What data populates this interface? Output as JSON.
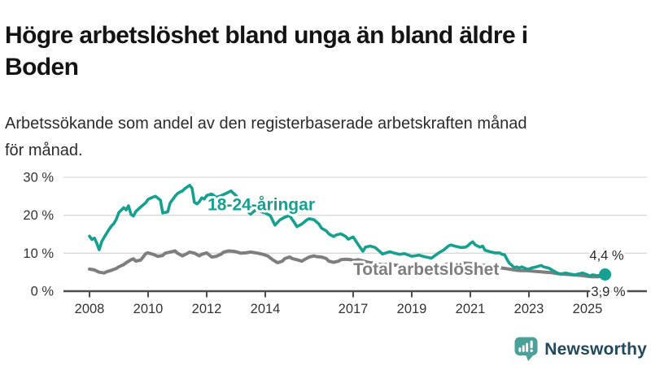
{
  "title": {
    "line1": "Högre arbetslöshet bland unga än bland äldre i",
    "line2": "Boden"
  },
  "subtitle": {
    "line1": "Arbetssökande som andel av den registerbaserade arbetskraften månad",
    "line2": "för månad."
  },
  "logo": {
    "text": "Newsworthy",
    "icon": "bar-chart-speech-bubble",
    "icon_color": "#4aa19a",
    "text_color": "#214a5e"
  },
  "chart_data": {
    "type": "line",
    "title": "Högre arbetslöshet bland unga än bland äldre i Boden",
    "xlabel": "",
    "ylabel": "",
    "unit": "%",
    "grid": "horizontal",
    "legend_position": "inline-labels",
    "x_axis": {
      "ticks": [
        2008,
        2010,
        2012,
        2014,
        2017,
        2019,
        2021,
        2023,
        2025
      ],
      "labels": [
        "2008",
        "2010",
        "2012",
        "2014",
        "2017",
        "2019",
        "2021",
        "2023",
        "2025"
      ],
      "range": [
        2008,
        2025.6
      ]
    },
    "y_axis": {
      "ticks": [
        0,
        10,
        20,
        30
      ],
      "labels": [
        "0 %",
        "10 %",
        "20 %",
        "30 %"
      ],
      "range": [
        0,
        30
      ]
    },
    "style": {
      "grid_color": "#d9d9d9",
      "axis_color": "#4d4d4d",
      "tick_text_color": "#333333",
      "value_text_color": "#2b2b2b",
      "label_halo_color": "#ffffff"
    },
    "series": [
      {
        "name": "18-24-åringar",
        "color": "#16a08f",
        "end_label": "4,4 %",
        "end_value": 4.4,
        "label_anchor": {
          "year": 2012.03,
          "value": 21.3
        },
        "points": [
          [
            2008.0,
            14.5
          ],
          [
            2008.08,
            13.6
          ],
          [
            2008.17,
            14.0
          ],
          [
            2008.25,
            12.6
          ],
          [
            2008.33,
            10.9
          ],
          [
            2008.42,
            13.1
          ],
          [
            2008.5,
            14.2
          ],
          [
            2008.58,
            15.2
          ],
          [
            2008.67,
            16.3
          ],
          [
            2008.75,
            17.2
          ],
          [
            2008.83,
            17.8
          ],
          [
            2008.92,
            19.0
          ],
          [
            2009.0,
            20.7
          ],
          [
            2009.17,
            22.0
          ],
          [
            2009.25,
            21.4
          ],
          [
            2009.33,
            22.5
          ],
          [
            2009.42,
            20.2
          ],
          [
            2009.5,
            19.8
          ],
          [
            2009.58,
            21.0
          ],
          [
            2009.75,
            22.2
          ],
          [
            2009.92,
            23.3
          ],
          [
            2010.0,
            24.2
          ],
          [
            2010.17,
            24.8
          ],
          [
            2010.25,
            25.0
          ],
          [
            2010.42,
            24.0
          ],
          [
            2010.5,
            20.6
          ],
          [
            2010.67,
            20.9
          ],
          [
            2010.75,
            23.2
          ],
          [
            2010.92,
            25.0
          ],
          [
            2011.0,
            25.7
          ],
          [
            2011.08,
            26.1
          ],
          [
            2011.17,
            26.4
          ],
          [
            2011.25,
            27.0
          ],
          [
            2011.42,
            27.9
          ],
          [
            2011.5,
            27.1
          ],
          [
            2011.58,
            23.4
          ],
          [
            2011.67,
            23.0
          ],
          [
            2011.75,
            23.6
          ],
          [
            2011.83,
            24.6
          ],
          [
            2011.92,
            24.3
          ],
          [
            2012.0,
            25.2
          ],
          [
            2012.17,
            25.6
          ],
          [
            2012.33,
            24.7
          ],
          [
            2012.5,
            25.2
          ],
          [
            2012.67,
            25.8
          ],
          [
            2012.83,
            26.4
          ],
          [
            2013.0,
            25.2
          ],
          [
            2013.17,
            23.6
          ],
          [
            2013.33,
            21.6
          ],
          [
            2013.5,
            20.3
          ],
          [
            2013.67,
            21.4
          ],
          [
            2013.83,
            21.0
          ],
          [
            2014.0,
            20.6
          ],
          [
            2014.17,
            19.9
          ],
          [
            2014.33,
            17.4
          ],
          [
            2014.5,
            18.8
          ],
          [
            2014.67,
            19.5
          ],
          [
            2014.83,
            19.9
          ],
          [
            2015.0,
            18.0
          ],
          [
            2015.08,
            17.0
          ],
          [
            2015.25,
            17.7
          ],
          [
            2015.42,
            18.8
          ],
          [
            2015.5,
            19.1
          ],
          [
            2015.67,
            18.8
          ],
          [
            2015.83,
            17.7
          ],
          [
            2015.92,
            16.6
          ],
          [
            2016.08,
            15.9
          ],
          [
            2016.17,
            15.1
          ],
          [
            2016.33,
            14.4
          ],
          [
            2016.42,
            14.8
          ],
          [
            2016.58,
            15.1
          ],
          [
            2016.75,
            14.4
          ],
          [
            2016.83,
            13.7
          ],
          [
            2017.0,
            14.3
          ],
          [
            2017.17,
            12.3
          ],
          [
            2017.33,
            10.5
          ],
          [
            2017.42,
            11.6
          ],
          [
            2017.58,
            11.9
          ],
          [
            2017.75,
            11.5
          ],
          [
            2017.92,
            10.4
          ],
          [
            2018.0,
            9.8
          ],
          [
            2018.25,
            10.4
          ],
          [
            2018.42,
            10.0
          ],
          [
            2018.58,
            9.7
          ],
          [
            2018.75,
            9.9
          ],
          [
            2019.0,
            9.2
          ],
          [
            2019.25,
            9.5
          ],
          [
            2019.42,
            9.1
          ],
          [
            2019.67,
            8.7
          ],
          [
            2019.92,
            10.1
          ],
          [
            2020.08,
            10.8
          ],
          [
            2020.25,
            11.9
          ],
          [
            2020.33,
            12.2
          ],
          [
            2020.5,
            11.8
          ],
          [
            2020.67,
            11.5
          ],
          [
            2020.83,
            11.6
          ],
          [
            2020.92,
            12.0
          ],
          [
            2021.0,
            12.6
          ],
          [
            2021.08,
            13.0
          ],
          [
            2021.17,
            12.2
          ],
          [
            2021.33,
            11.6
          ],
          [
            2021.42,
            11.9
          ],
          [
            2021.5,
            10.8
          ],
          [
            2021.67,
            10.4
          ],
          [
            2021.83,
            10.1
          ],
          [
            2022.0,
            10.1
          ],
          [
            2022.08,
            9.7
          ],
          [
            2022.17,
            9.6
          ],
          [
            2022.25,
            8.4
          ],
          [
            2022.33,
            7.4
          ],
          [
            2022.42,
            6.8
          ],
          [
            2022.5,
            6.2
          ],
          [
            2022.58,
            6.4
          ],
          [
            2022.67,
            6.1
          ],
          [
            2022.75,
            6.4
          ],
          [
            2022.92,
            5.9
          ],
          [
            2023.0,
            5.8
          ],
          [
            2023.08,
            6.1
          ],
          [
            2023.25,
            6.4
          ],
          [
            2023.42,
            6.8
          ],
          [
            2023.5,
            6.4
          ],
          [
            2023.67,
            6.1
          ],
          [
            2023.83,
            5.4
          ],
          [
            2023.92,
            5.0
          ],
          [
            2024.0,
            4.7
          ],
          [
            2024.08,
            4.5
          ],
          [
            2024.25,
            4.8
          ],
          [
            2024.42,
            4.5
          ],
          [
            2024.58,
            4.3
          ],
          [
            2024.67,
            4.5
          ],
          [
            2024.83,
            4.8
          ],
          [
            2025.0,
            4.3
          ],
          [
            2025.08,
            4.0
          ],
          [
            2025.17,
            4.3
          ],
          [
            2025.33,
            4.1
          ],
          [
            2025.6,
            4.4
          ]
        ]
      },
      {
        "name": "Total arbetslöshet",
        "color": "#7e7e7e",
        "end_label": "3,9 %",
        "end_value": 3.9,
        "label_anchor": {
          "year": 2017.0,
          "value": 4.3
        },
        "points": [
          [
            2008.0,
            5.8
          ],
          [
            2008.17,
            5.6
          ],
          [
            2008.33,
            5.0
          ],
          [
            2008.5,
            4.8
          ],
          [
            2008.58,
            5.1
          ],
          [
            2008.75,
            5.5
          ],
          [
            2008.92,
            6.0
          ],
          [
            2009.0,
            6.4
          ],
          [
            2009.17,
            7.0
          ],
          [
            2009.25,
            7.5
          ],
          [
            2009.42,
            8.3
          ],
          [
            2009.5,
            8.5
          ],
          [
            2009.58,
            7.9
          ],
          [
            2009.75,
            8.2
          ],
          [
            2009.92,
            9.9
          ],
          [
            2010.0,
            10.1
          ],
          [
            2010.17,
            9.7
          ],
          [
            2010.33,
            9.2
          ],
          [
            2010.5,
            9.4
          ],
          [
            2010.58,
            10.0
          ],
          [
            2010.75,
            10.3
          ],
          [
            2010.92,
            10.6
          ],
          [
            2011.0,
            10.0
          ],
          [
            2011.17,
            9.3
          ],
          [
            2011.33,
            9.9
          ],
          [
            2011.42,
            10.3
          ],
          [
            2011.58,
            10.0
          ],
          [
            2011.75,
            9.3
          ],
          [
            2011.83,
            9.7
          ],
          [
            2012.0,
            10.1
          ],
          [
            2012.17,
            9.0
          ],
          [
            2012.33,
            9.2
          ],
          [
            2012.5,
            9.8
          ],
          [
            2012.58,
            10.3
          ],
          [
            2012.75,
            10.6
          ],
          [
            2012.92,
            10.5
          ],
          [
            2013.0,
            10.4
          ],
          [
            2013.17,
            10.0
          ],
          [
            2013.33,
            10.1
          ],
          [
            2013.5,
            10.3
          ],
          [
            2013.75,
            10.0
          ],
          [
            2013.92,
            9.7
          ],
          [
            2014.08,
            9.3
          ],
          [
            2014.25,
            8.3
          ],
          [
            2014.42,
            7.5
          ],
          [
            2014.58,
            7.9
          ],
          [
            2014.67,
            8.6
          ],
          [
            2014.83,
            9.0
          ],
          [
            2014.92,
            8.6
          ],
          [
            2015.08,
            8.3
          ],
          [
            2015.25,
            7.9
          ],
          [
            2015.33,
            8.3
          ],
          [
            2015.5,
            9.0
          ],
          [
            2015.67,
            9.3
          ],
          [
            2015.75,
            9.1
          ],
          [
            2015.92,
            9.0
          ],
          [
            2016.08,
            8.6
          ],
          [
            2016.17,
            7.9
          ],
          [
            2016.33,
            7.6
          ],
          [
            2016.5,
            7.9
          ],
          [
            2016.58,
            8.3
          ],
          [
            2016.75,
            8.4
          ],
          [
            2016.92,
            8.3
          ],
          [
            2017.0,
            8.1
          ],
          [
            2017.17,
            8.3
          ],
          [
            2017.33,
            8.0
          ],
          [
            2017.5,
            7.6
          ],
          [
            2017.75,
            7.3
          ],
          [
            2018.0,
            7.0
          ],
          [
            2018.25,
            7.1
          ],
          [
            2018.5,
            6.8
          ],
          [
            2018.75,
            6.7
          ],
          [
            2019.0,
            6.6
          ],
          [
            2019.25,
            6.5
          ],
          [
            2019.5,
            6.4
          ],
          [
            2019.75,
            6.5
          ],
          [
            2020.0,
            6.8
          ],
          [
            2020.25,
            7.2
          ],
          [
            2020.5,
            7.4
          ],
          [
            2020.75,
            7.4
          ],
          [
            2021.0,
            7.3
          ],
          [
            2021.25,
            7.0
          ],
          [
            2021.5,
            6.8
          ],
          [
            2021.75,
            6.4
          ],
          [
            2022.0,
            6.2
          ],
          [
            2022.17,
            6.0
          ],
          [
            2022.33,
            5.8
          ],
          [
            2022.42,
            5.7
          ],
          [
            2022.58,
            5.5
          ],
          [
            2022.75,
            5.4
          ],
          [
            2022.92,
            5.4
          ],
          [
            2023.08,
            5.3
          ],
          [
            2023.25,
            5.2
          ],
          [
            2023.42,
            5.1
          ],
          [
            2023.58,
            5.0
          ],
          [
            2023.75,
            4.9
          ],
          [
            2023.92,
            4.7
          ],
          [
            2024.0,
            4.6
          ],
          [
            2024.17,
            4.5
          ],
          [
            2024.33,
            4.4
          ],
          [
            2024.5,
            4.3
          ],
          [
            2024.67,
            4.2
          ],
          [
            2024.83,
            4.1
          ],
          [
            2025.0,
            3.9
          ],
          [
            2025.17,
            3.8
          ],
          [
            2025.33,
            3.8
          ],
          [
            2025.6,
            3.9
          ]
        ]
      }
    ]
  }
}
